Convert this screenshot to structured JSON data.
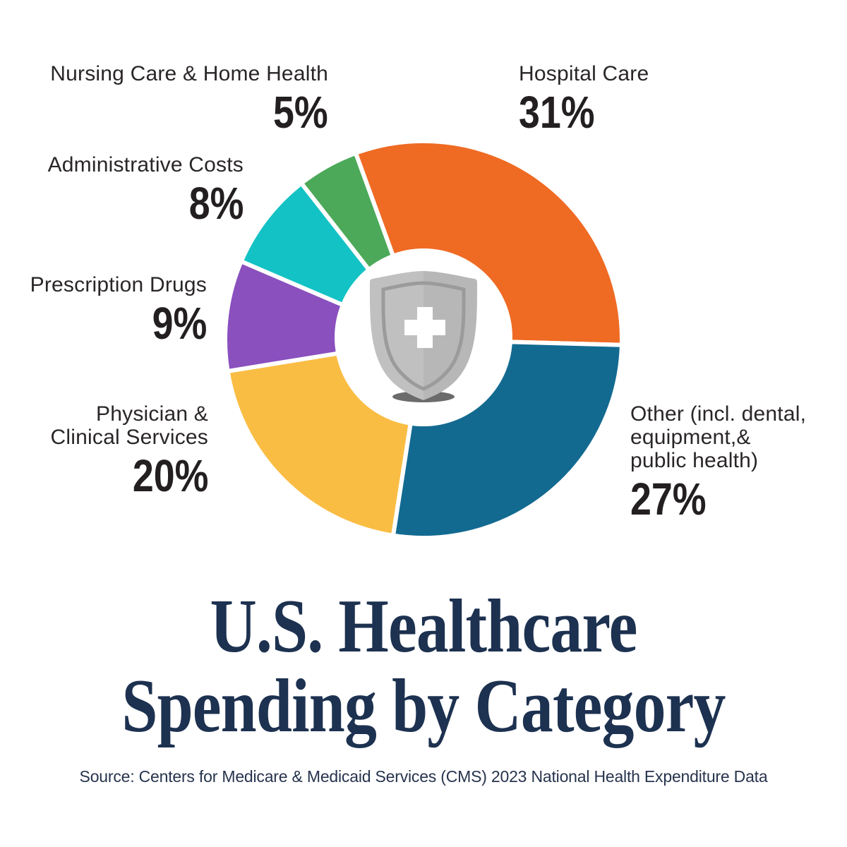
{
  "page": {
    "background_color": "#ffffff"
  },
  "colors": {
    "title": "#1d3150",
    "category_label": "#2a2627",
    "percent_label": "#231f20",
    "source_text": "#27344e",
    "slice_gap": "#ffffff",
    "shield_gray": "#bcbcbc",
    "shield_highlight": "#c9c9c9",
    "shield_outline": "#9b9b9b",
    "shield_cross": "#ffffff",
    "shield_shadow": "#6b6b6b"
  },
  "title": {
    "lines": [
      "U.S. Healthcare",
      "Spending by Category"
    ]
  },
  "source_line": "Source: Centers for Medicare & Medicaid Services (CMS) 2023 National Health Expenditure Data",
  "center_icon": "medical-shield-with-cross",
  "chart_data": {
    "type": "pie",
    "variant": "donut",
    "title": "U.S. Healthcare Spending by Category",
    "units": "percent of total spending",
    "start_angle_deg": -20,
    "direction": "clockwise",
    "legend_position": "callout labels around chart",
    "segments": [
      {
        "label": "Hospital Care",
        "value": 31,
        "display": "31%",
        "color": "#ef6a23"
      },
      {
        "label": "Other (incl. dental, equipment,& public health)",
        "value": 27,
        "display": "27%",
        "color": "#136a90"
      },
      {
        "label": "Physician & Clinical Services",
        "value": 20,
        "display": "20%",
        "color": "#fabd44"
      },
      {
        "label": "Prescription Drugs",
        "value": 9,
        "display": "9%",
        "color": "#8a50be"
      },
      {
        "label": "Administrative Costs",
        "value": 8,
        "display": "8%",
        "color": "#13c2c4"
      },
      {
        "label": "Nursing Care & Home Health",
        "value": 5,
        "display": "5%",
        "color": "#4ca95a"
      }
    ],
    "source": "Source: Centers for Medicare & Medicaid Services (CMS) 2023 National Health Expenditure Data"
  },
  "callouts": [
    {
      "segment_index": 5,
      "lines": [
        "Nursing Care & Home Health"
      ]
    },
    {
      "segment_index": 0,
      "lines": [
        "Hospital Care"
      ]
    },
    {
      "segment_index": 4,
      "lines": [
        "Administrative Costs"
      ]
    },
    {
      "segment_index": 3,
      "lines": [
        "Prescription Drugs"
      ]
    },
    {
      "segment_index": 2,
      "lines": [
        "Physician &",
        "Clinical Services"
      ]
    },
    {
      "segment_index": 1,
      "lines": [
        "Other (incl. dental,",
        "equipment,&",
        "public health)"
      ]
    }
  ]
}
